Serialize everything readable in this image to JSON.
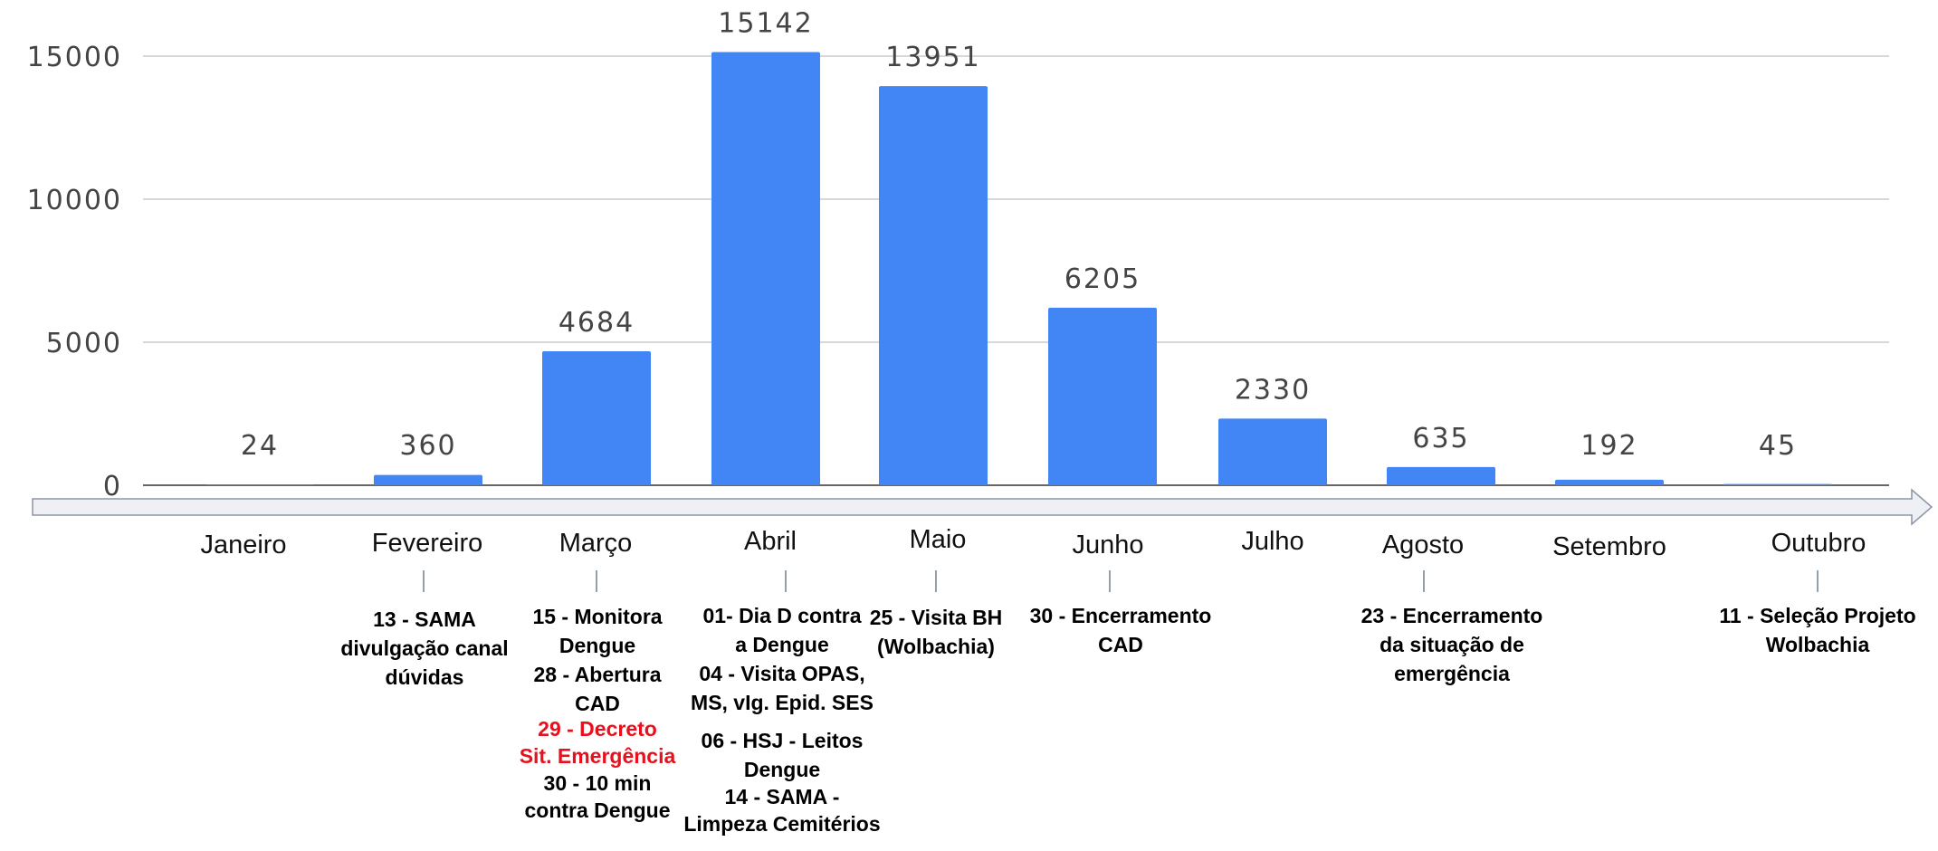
{
  "colors": {
    "bar": "#4285f4",
    "grid": "#cccccc",
    "arrow_fill": "#eef0f4",
    "arrow_stroke": "#8a95a3",
    "event_text": "#000000",
    "event_highlight": "#e8101c"
  },
  "chart_data": {
    "type": "bar",
    "categories": [
      "Janeiro",
      "Fevereiro",
      "Março",
      "Abril",
      "Maio",
      "Junho",
      "Julho",
      "Agosto",
      "Setembro",
      "Outubro"
    ],
    "values": [
      24,
      360,
      4684,
      15142,
      13951,
      6205,
      2330,
      635,
      192,
      45
    ],
    "y_ticks": [
      "0",
      "5000",
      "10000",
      "15000"
    ],
    "ylim": [
      0,
      15000
    ],
    "grid": true,
    "value_labels": [
      "24",
      "360",
      "4684",
      "15142",
      "13951",
      "6205",
      "2330",
      "635",
      "192",
      "45"
    ]
  },
  "timeline": {
    "months": [
      "Janeiro",
      "Fevereiro",
      "Março",
      "Abril",
      "Maio",
      "Junho",
      "Julho",
      "Agosto",
      "Setembro",
      "Outubro"
    ],
    "events": [
      {
        "month": "Fevereiro",
        "lines": [
          {
            "text": "13 - SAMA"
          },
          {
            "text": "divulgação canal"
          },
          {
            "text": "dúvidas"
          }
        ]
      },
      {
        "month": "Março",
        "lines": [
          {
            "text": "15 - Monitora"
          },
          {
            "text": "Dengue"
          },
          {
            "text": "28 - Abertura"
          },
          {
            "text": "CAD"
          },
          {
            "text": "29 - Decreto",
            "highlight": true
          },
          {
            "text": "Sit. Emergência",
            "highlight": true
          },
          {
            "text": "30  - 10 min"
          },
          {
            "text": "contra Dengue"
          }
        ]
      },
      {
        "month": "Abril",
        "lines": [
          {
            "text": "01- Dia D contra"
          },
          {
            "text": "a Dengue"
          },
          {
            "text": "04 - Visita OPAS,"
          },
          {
            "text": "MS, vIg. Epid. SES"
          },
          {
            "text": "06 - HSJ - Leitos"
          },
          {
            "text": "Dengue"
          },
          {
            "text": "14 - SAMA -"
          },
          {
            "text": "Limpeza Cemitérios"
          }
        ]
      },
      {
        "month": "Maio",
        "lines": [
          {
            "text": "25 - Visita BH"
          },
          {
            "text": "(Wolbachia)"
          }
        ]
      },
      {
        "month": "Junho",
        "lines": [
          {
            "text": "30 - Encerramento"
          },
          {
            "text": "CAD"
          }
        ]
      },
      {
        "month": "Agosto",
        "lines": [
          {
            "text": "23 - Encerramento"
          },
          {
            "text": "da situação de"
          },
          {
            "text": "emergência"
          }
        ]
      },
      {
        "month": "Outubro",
        "lines": [
          {
            "text": "11 - Seleção Projeto"
          },
          {
            "text": "Wolbachia"
          }
        ]
      }
    ]
  }
}
